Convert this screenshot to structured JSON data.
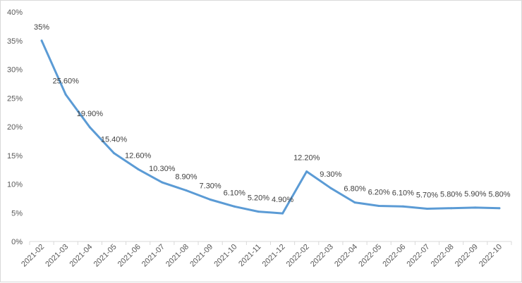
{
  "chart_data": {
    "type": "line",
    "title": "",
    "xlabel": "",
    "ylabel": "",
    "x": [
      "2021-02",
      "2021-03",
      "2021-04",
      "2021-05",
      "2021-06",
      "2021-07",
      "2021-08",
      "2021-09",
      "2021-10",
      "2021-11",
      "2021-12",
      "2022-02",
      "2022-03",
      "2022-04",
      "2022-05",
      "2022-06",
      "2022-07",
      "2022-08",
      "2022-09",
      "2022-10"
    ],
    "values": [
      35,
      25.6,
      19.9,
      15.4,
      12.6,
      10.3,
      8.9,
      7.3,
      6.1,
      5.2,
      4.9,
      12.2,
      9.3,
      6.8,
      6.2,
      6.1,
      5.7,
      5.8,
      5.9,
      5.8
    ],
    "data_labels": [
      "35%",
      "25.60%",
      "19.90%",
      "15.40%",
      "12.60%",
      "10.30%",
      "8.90%",
      "7.30%",
      "6.10%",
      "5.20%",
      "4.90%",
      "12.20%",
      "9.30%",
      "6.80%",
      "6.20%",
      "6.10%",
      "5.70%",
      "5.80%",
      "5.90%",
      "5.80%"
    ],
    "y_ticks": [
      0,
      5,
      10,
      15,
      20,
      25,
      30,
      35,
      40
    ],
    "y_tick_labels": [
      "0%",
      "5%",
      "10%",
      "15%",
      "20%",
      "25%",
      "30%",
      "35%",
      "40%"
    ],
    "ylim": [
      0,
      40
    ],
    "grid": false,
    "legend": "none",
    "colors": {
      "line": "#5b9bd5",
      "axis": "#d9d9d9",
      "tick_text": "#595959",
      "label_text": "#404040"
    }
  }
}
